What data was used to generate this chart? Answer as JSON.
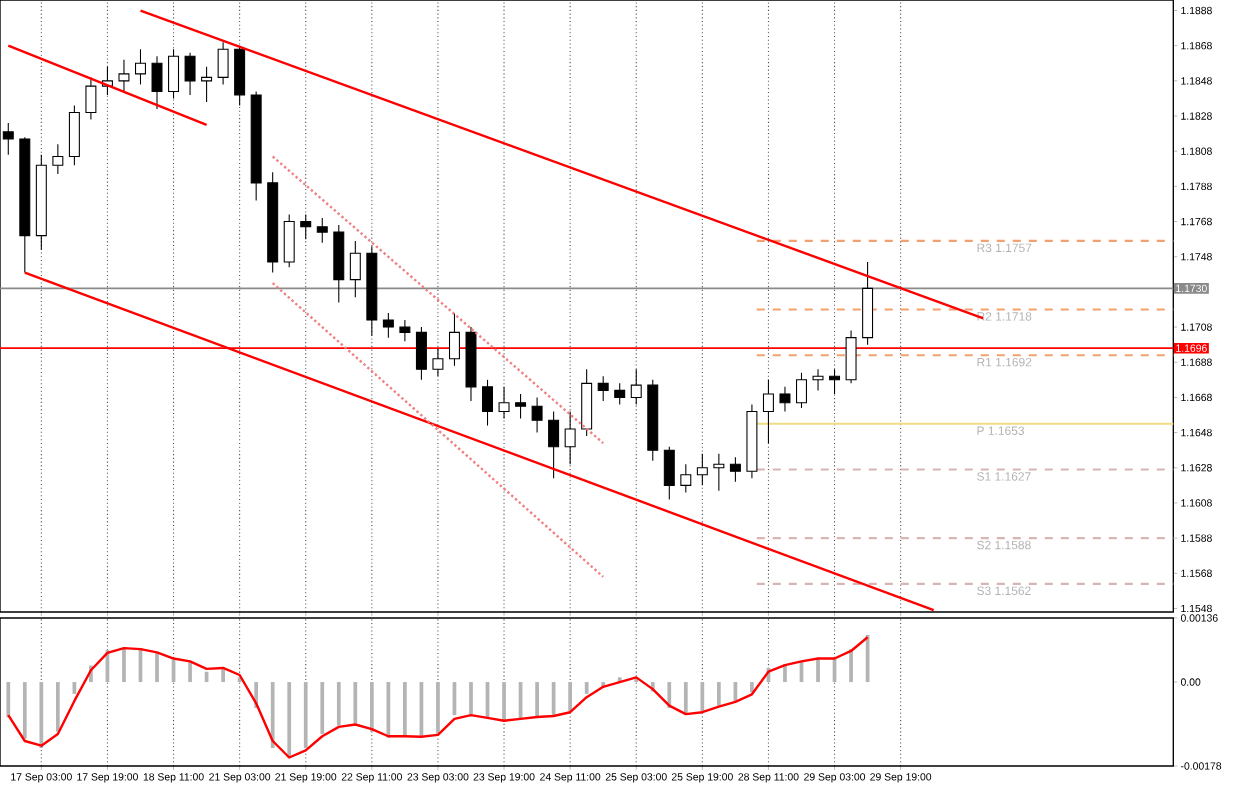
{
  "chart_data": [
    {
      "type": "candlestick",
      "ylim": [
        1.1546,
        1.1894
      ],
      "tick_labels": "y",
      "grid": "x",
      "categories": [
        null,
        null,
        null,
        null,
        null,
        null,
        null,
        null,
        null,
        null,
        null,
        null,
        null,
        null,
        null,
        null,
        null,
        null,
        null,
        null,
        null,
        null,
        null,
        null,
        null,
        null,
        null,
        null,
        null,
        null,
        null,
        null,
        null,
        null,
        null,
        null,
        null,
        null,
        null,
        null,
        null,
        null,
        null,
        null,
        null,
        null,
        null,
        null,
        null,
        null,
        null,
        null,
        null,
        null,
        null,
        null,
        null,
        null,
        null,
        null,
        null,
        null,
        null,
        null,
        null,
        null,
        null,
        null,
        null,
        null,
        null
      ],
      "yticks": [
        1.1548,
        1.1568,
        1.1588,
        1.1608,
        1.1628,
        1.1648,
        1.1668,
        1.1688,
        1.1708,
        1.1748,
        1.1768,
        1.1788,
        1.1808,
        1.1828,
        1.1848,
        1.1868,
        1.1888
      ],
      "series": [
        {
          "color": "#000000",
          "ohlc": [
            [
              1.1819,
              1.1824,
              1.1806,
              1.1815
            ],
            [
              1.1815,
              1.1816,
              1.1739,
              1.176
            ],
            [
              1.176,
              1.1806,
              1.1752,
              1.18
            ],
            [
              1.18,
              1.1812,
              1.1795,
              1.1805
            ],
            [
              1.1805,
              1.1834,
              1.18,
              1.183
            ],
            [
              1.183,
              1.185,
              1.1826,
              1.1845
            ],
            [
              1.1845,
              1.1856,
              1.184,
              1.1848
            ],
            [
              1.1848,
              1.186,
              1.1842,
              1.1852
            ],
            [
              1.1852,
              1.1866,
              1.1846,
              1.1858
            ],
            [
              1.1858,
              1.1862,
              1.1832,
              1.1842
            ],
            [
              1.1842,
              1.1866,
              1.1838,
              1.1862
            ],
            [
              1.1862,
              1.1864,
              1.184,
              1.1848
            ],
            [
              1.1848,
              1.1856,
              1.1836,
              1.185
            ],
            [
              1.185,
              1.187,
              1.1846,
              1.1866
            ],
            [
              1.1866,
              1.1868,
              1.1834,
              1.184
            ],
            [
              1.184,
              1.1842,
              1.178,
              1.179
            ],
            [
              1.179,
              1.1796,
              1.1739,
              1.1745
            ],
            [
              1.1745,
              1.1772,
              1.1742,
              1.1768
            ],
            [
              1.1768,
              1.1772,
              1.1758,
              1.1765
            ],
            [
              1.1765,
              1.177,
              1.1756,
              1.1762
            ],
            [
              1.1762,
              1.1766,
              1.1722,
              1.1735
            ],
            [
              1.1735,
              1.1757,
              1.1725,
              1.175
            ],
            [
              1.175,
              1.1754,
              1.1703,
              1.1712
            ],
            [
              1.1712,
              1.1716,
              1.1702,
              1.1708
            ],
            [
              1.1708,
              1.1712,
              1.17,
              1.1705
            ],
            [
              1.1705,
              1.1708,
              1.1678,
              1.1684
            ],
            [
              1.1684,
              1.1696,
              1.168,
              1.169
            ],
            [
              1.169,
              1.1716,
              1.1686,
              1.1705
            ],
            [
              1.1705,
              1.1708,
              1.1666,
              1.1674
            ],
            [
              1.1674,
              1.1678,
              1.1652,
              1.166
            ],
            [
              1.166,
              1.1674,
              1.1656,
              1.1665
            ],
            [
              1.1665,
              1.167,
              1.1656,
              1.1663
            ],
            [
              1.1663,
              1.1668,
              1.1648,
              1.1655
            ],
            [
              1.1655,
              1.166,
              1.1622,
              1.164
            ],
            [
              1.164,
              1.166,
              1.163,
              1.165
            ],
            [
              1.165,
              1.1684,
              1.1646,
              1.1676
            ],
            [
              1.1676,
              1.168,
              1.1666,
              1.1672
            ],
            [
              1.1672,
              1.1676,
              1.1664,
              1.1668
            ],
            [
              1.1668,
              1.1684,
              1.1664,
              1.1675
            ],
            [
              1.1675,
              1.1678,
              1.1632,
              1.1638
            ],
            [
              1.1638,
              1.164,
              1.161,
              1.1618
            ],
            [
              1.1618,
              1.163,
              1.1614,
              1.1624
            ],
            [
              1.1624,
              1.1636,
              1.1618,
              1.1628
            ],
            [
              1.1628,
              1.1636,
              1.1615,
              1.163
            ],
            [
              1.163,
              1.1634,
              1.162,
              1.1626
            ],
            [
              1.1626,
              1.1664,
              1.1622,
              1.166
            ],
            [
              1.166,
              1.1678,
              1.1642,
              1.167
            ],
            [
              1.167,
              1.1674,
              1.166,
              1.1665
            ],
            [
              1.1665,
              1.1682,
              1.1662,
              1.1678
            ],
            [
              1.1678,
              1.1684,
              1.1672,
              1.168
            ],
            [
              1.168,
              1.1684,
              1.167,
              1.1678
            ],
            [
              1.1678,
              1.1706,
              1.1676,
              1.1702
            ],
            [
              1.1702,
              1.1745,
              1.1698,
              1.173
            ],
            null,
            null,
            null,
            null,
            null,
            null,
            null,
            null,
            null,
            null,
            null,
            null,
            null,
            null,
            null,
            null,
            null,
            null
          ]
        },
        {
          "type": "line",
          "color": "#ff0000",
          "values": [
            null,
            null,
            null,
            null,
            null,
            null,
            null,
            null,
            1.1888,
            null,
            null,
            null,
            null,
            null,
            null,
            null,
            null,
            null,
            null,
            null,
            null,
            null,
            null,
            null,
            null,
            null,
            null,
            null,
            null,
            null,
            null,
            null,
            null,
            null,
            null,
            null,
            null,
            null,
            null,
            null,
            null,
            null,
            null,
            null,
            null,
            null,
            null,
            null,
            null,
            null,
            null,
            null,
            null,
            null,
            null,
            null,
            null,
            null,
            null,
            1.1713,
            null,
            null,
            null,
            null,
            null,
            null,
            null,
            null,
            null,
            null,
            null
          ]
        },
        {
          "type": "line",
          "color": "#ff0000",
          "values": [
            1.1868,
            null,
            null,
            null,
            null,
            null,
            null,
            null,
            null,
            null,
            null,
            null,
            1.1823,
            null,
            null,
            null,
            null,
            null,
            null,
            null,
            null,
            null,
            null,
            null,
            null,
            null,
            null,
            null,
            null,
            null,
            null,
            null,
            null,
            null,
            null,
            null,
            null,
            null,
            null,
            null,
            null,
            null,
            null,
            null,
            null,
            null,
            null,
            null,
            null,
            null,
            null,
            null,
            null,
            null,
            null,
            null,
            null,
            null,
            null,
            null,
            null,
            null,
            null,
            null,
            null,
            null,
            null,
            null,
            null,
            null,
            null
          ]
        },
        {
          "type": "line",
          "color": "#ff0000",
          "values": [
            null,
            1.1739,
            null,
            null,
            null,
            null,
            null,
            null,
            null,
            null,
            null,
            null,
            null,
            null,
            null,
            null,
            null,
            null,
            null,
            null,
            null,
            null,
            null,
            null,
            null,
            null,
            null,
            null,
            null,
            null,
            null,
            null,
            null,
            null,
            null,
            null,
            null,
            null,
            null,
            null,
            null,
            null,
            null,
            null,
            null,
            null,
            null,
            null,
            null,
            null,
            null,
            null,
            null,
            null,
            null,
            null,
            1.1547,
            null,
            null,
            null,
            null,
            null,
            null,
            null,
            null,
            null,
            null,
            null,
            null,
            null,
            null
          ]
        },
        {
          "type": "line",
          "color": "#f08080",
          "line_style": "dotted",
          "values": [
            null,
            null,
            null,
            null,
            null,
            null,
            null,
            null,
            null,
            null,
            null,
            null,
            null,
            null,
            null,
            null,
            1.1805,
            null,
            null,
            null,
            null,
            null,
            null,
            null,
            null,
            null,
            null,
            null,
            null,
            null,
            null,
            null,
            null,
            null,
            null,
            null,
            1.1642,
            null,
            null,
            null,
            null,
            null,
            null,
            null,
            null,
            null,
            null,
            null,
            null,
            null,
            null,
            null,
            null,
            null,
            null,
            null,
            null,
            null,
            null,
            null,
            null,
            null,
            null,
            null,
            null,
            null,
            null,
            null,
            null,
            null,
            null
          ]
        },
        {
          "type": "line",
          "color": "#f08080",
          "line_style": "dotted",
          "values": [
            null,
            null,
            null,
            null,
            null,
            null,
            null,
            null,
            null,
            null,
            null,
            null,
            null,
            null,
            null,
            null,
            1.1733,
            null,
            null,
            null,
            null,
            null,
            null,
            null,
            null,
            null,
            null,
            null,
            null,
            null,
            null,
            null,
            null,
            null,
            null,
            null,
            1.1566,
            null,
            null,
            null,
            null,
            null,
            null,
            null,
            null,
            null,
            null,
            null,
            null,
            null,
            null,
            null,
            null,
            null,
            null,
            null,
            null,
            null,
            null,
            null,
            null,
            null,
            null,
            null,
            null,
            null,
            null,
            null,
            null,
            null,
            null
          ]
        }
      ],
      "ref_lines": [
        {
          "axis": "y",
          "value": 1.1696,
          "label": "1.1696",
          "color": "#ff0000"
        },
        {
          "axis": "y",
          "value": 1.173,
          "label": "1.1730",
          "color": "#8a8a8a"
        },
        {
          "axis": "y",
          "value": 1.1757,
          "label": "R3 1.1757",
          "color": "#f4a070",
          "line_style": "dashed"
        },
        {
          "axis": "y",
          "value": 1.1718,
          "label": "R2 1.1718",
          "color": "#f4a070",
          "line_style": "dashed"
        },
        {
          "axis": "y",
          "value": 1.1692,
          "label": "R1 1.1692",
          "color": "#f4a070",
          "line_style": "dashed"
        },
        {
          "axis": "y",
          "value": 1.1653,
          "label": "P 1.1653",
          "color": "#f0dc82",
          "line_style": "solid"
        },
        {
          "axis": "y",
          "value": 1.1627,
          "label": "S1 1.1627",
          "color": "#d8b4b4",
          "line_style": "dashed"
        },
        {
          "axis": "y",
          "value": 1.1588,
          "label": "S2 1.1588",
          "color": "#d8b4b4",
          "line_style": "dashed"
        },
        {
          "axis": "y",
          "value": 1.1562,
          "label": "S3 1.1562",
          "color": "#d8b4b4",
          "line_style": "dashed"
        }
      ]
    },
    {
      "type": "bar",
      "ylim": [
        -0.00178,
        0.00136
      ],
      "grid": "x",
      "categories": [
        null,
        null,
        "17 Sep 03:00",
        null,
        null,
        null,
        "17 Sep 19:00",
        null,
        null,
        null,
        "18 Sep 11:00",
        null,
        null,
        null,
        "21 Sep 03:00",
        null,
        null,
        null,
        "21 Sep 19:00",
        null,
        null,
        null,
        "22 Sep 11:00",
        null,
        null,
        null,
        "23 Sep 03:00",
        null,
        null,
        null,
        "23 Sep 19:00",
        null,
        null,
        null,
        "24 Sep 11:00",
        null,
        null,
        null,
        "25 Sep 03:00",
        null,
        null,
        null,
        "25 Sep 19:00",
        null,
        null,
        null,
        "28 Sep 11:00",
        null,
        null,
        null,
        "29 Sep 03:00",
        null,
        null,
        null,
        "29 Sep 19:00",
        null,
        null,
        null,
        null,
        null,
        null,
        null,
        null,
        null,
        null,
        null,
        null,
        null,
        null,
        null,
        null
      ],
      "yticks": [
        0.00136,
        {
          "value": 0,
          "label": "0.00"
        },
        -0.00178
      ],
      "series": [
        {
          "color": "#b4b4b4",
          "values": [
            -0.00075,
            -0.0012,
            -0.0014,
            -0.00105,
            -0.00025,
            0.00035,
            0.00068,
            0.00073,
            0.00072,
            0.00062,
            0.00048,
            0.00042,
            0.00022,
            0.00028,
            0.0001,
            -0.00055,
            -0.0014,
            -0.0016,
            -0.0014,
            -0.0011,
            -0.00092,
            -0.00088,
            -0.00105,
            -0.00118,
            -0.00115,
            -0.00118,
            -0.0011,
            -0.0007,
            -0.00068,
            -0.00078,
            -0.00084,
            -0.00078,
            -0.00072,
            -0.00072,
            -0.00062,
            -0.00025,
            -0.0001,
            0.0001,
            0.0001,
            -0.0002,
            -0.00055,
            -0.0007,
            -0.00062,
            -0.0005,
            -0.0004,
            -0.00022,
            0.0003,
            0.00038,
            0.00045,
            0.0005,
            0.0005,
            0.0007,
            0.001,
            null,
            null,
            null,
            null,
            null,
            null,
            null,
            null,
            null,
            null,
            null,
            null,
            null,
            null,
            null,
            null,
            null,
            null
          ]
        },
        {
          "type": "line",
          "color": "#ff0000",
          "values": [
            -0.0007,
            -0.00125,
            -0.00135,
            -0.0011,
            -0.0004,
            0.00025,
            0.00062,
            0.00072,
            0.0007,
            0.00063,
            0.0005,
            0.00044,
            0.00028,
            0.0003,
            0.00015,
            -0.00045,
            -0.00125,
            -0.0016,
            -0.00145,
            -0.00115,
            -0.00095,
            -0.0009,
            -0.001,
            -0.00115,
            -0.00115,
            -0.00116,
            -0.00112,
            -0.00078,
            -0.0007,
            -0.00076,
            -0.00082,
            -0.00078,
            -0.00074,
            -0.00072,
            -0.00064,
            -0.00032,
            -0.0001,
            0,
            0.0001,
            -0.00015,
            -0.0005,
            -0.00068,
            -0.00064,
            -0.00052,
            -0.00042,
            -0.00026,
            0.00022,
            0.00036,
            0.00044,
            0.0005,
            0.0005,
            0.00066,
            0.00095,
            null,
            null,
            null,
            null,
            null,
            null,
            null,
            null,
            null,
            null,
            null,
            null,
            null,
            null,
            null,
            null,
            null,
            null
          ]
        }
      ]
    }
  ]
}
